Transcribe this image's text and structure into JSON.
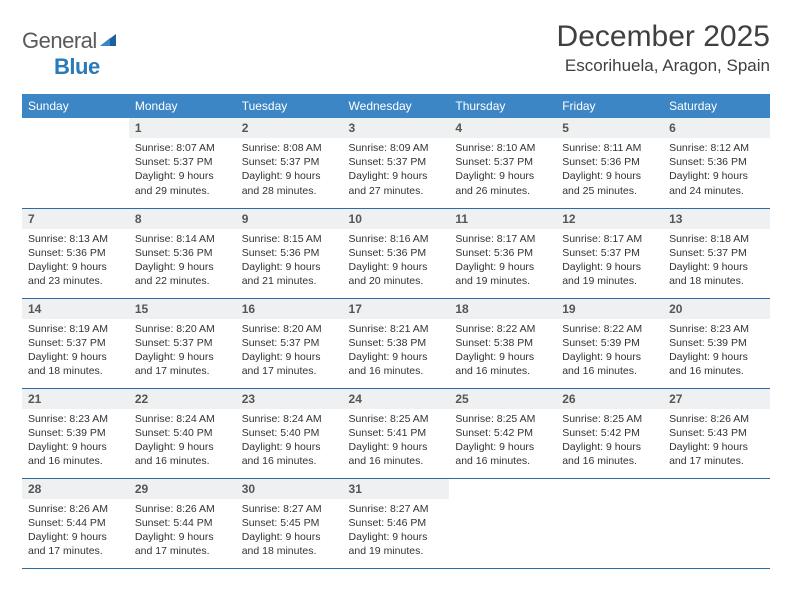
{
  "brand": {
    "text_a": "General",
    "text_b": "Blue"
  },
  "title": "December 2025",
  "location": "Escorihuela, Aragon, Spain",
  "colors": {
    "header_bg": "#3d86c6",
    "header_text": "#ffffff",
    "daynum_bg": "#eef0f1",
    "row_border": "#2a6ca8",
    "brand_gray": "#5a5a5a",
    "brand_blue": "#2a7ab9",
    "text": "#333333",
    "background": "#ffffff"
  },
  "typography": {
    "title_fontsize": 30,
    "location_fontsize": 17,
    "dayhead_fontsize": 12,
    "cell_fontsize": 10.5
  },
  "dayNames": [
    "Sunday",
    "Monday",
    "Tuesday",
    "Wednesday",
    "Thursday",
    "Friday",
    "Saturday"
  ],
  "weeks": [
    [
      {
        "empty": true
      },
      {
        "n": "1",
        "sr": "8:07 AM",
        "ss": "5:37 PM",
        "dl": "9 hours and 29 minutes."
      },
      {
        "n": "2",
        "sr": "8:08 AM",
        "ss": "5:37 PM",
        "dl": "9 hours and 28 minutes."
      },
      {
        "n": "3",
        "sr": "8:09 AM",
        "ss": "5:37 PM",
        "dl": "9 hours and 27 minutes."
      },
      {
        "n": "4",
        "sr": "8:10 AM",
        "ss": "5:37 PM",
        "dl": "9 hours and 26 minutes."
      },
      {
        "n": "5",
        "sr": "8:11 AM",
        "ss": "5:36 PM",
        "dl": "9 hours and 25 minutes."
      },
      {
        "n": "6",
        "sr": "8:12 AM",
        "ss": "5:36 PM",
        "dl": "9 hours and 24 minutes."
      }
    ],
    [
      {
        "n": "7",
        "sr": "8:13 AM",
        "ss": "5:36 PM",
        "dl": "9 hours and 23 minutes."
      },
      {
        "n": "8",
        "sr": "8:14 AM",
        "ss": "5:36 PM",
        "dl": "9 hours and 22 minutes."
      },
      {
        "n": "9",
        "sr": "8:15 AM",
        "ss": "5:36 PM",
        "dl": "9 hours and 21 minutes."
      },
      {
        "n": "10",
        "sr": "8:16 AM",
        "ss": "5:36 PM",
        "dl": "9 hours and 20 minutes."
      },
      {
        "n": "11",
        "sr": "8:17 AM",
        "ss": "5:36 PM",
        "dl": "9 hours and 19 minutes."
      },
      {
        "n": "12",
        "sr": "8:17 AM",
        "ss": "5:37 PM",
        "dl": "9 hours and 19 minutes."
      },
      {
        "n": "13",
        "sr": "8:18 AM",
        "ss": "5:37 PM",
        "dl": "9 hours and 18 minutes."
      }
    ],
    [
      {
        "n": "14",
        "sr": "8:19 AM",
        "ss": "5:37 PM",
        "dl": "9 hours and 18 minutes."
      },
      {
        "n": "15",
        "sr": "8:20 AM",
        "ss": "5:37 PM",
        "dl": "9 hours and 17 minutes."
      },
      {
        "n": "16",
        "sr": "8:20 AM",
        "ss": "5:37 PM",
        "dl": "9 hours and 17 minutes."
      },
      {
        "n": "17",
        "sr": "8:21 AM",
        "ss": "5:38 PM",
        "dl": "9 hours and 16 minutes."
      },
      {
        "n": "18",
        "sr": "8:22 AM",
        "ss": "5:38 PM",
        "dl": "9 hours and 16 minutes."
      },
      {
        "n": "19",
        "sr": "8:22 AM",
        "ss": "5:39 PM",
        "dl": "9 hours and 16 minutes."
      },
      {
        "n": "20",
        "sr": "8:23 AM",
        "ss": "5:39 PM",
        "dl": "9 hours and 16 minutes."
      }
    ],
    [
      {
        "n": "21",
        "sr": "8:23 AM",
        "ss": "5:39 PM",
        "dl": "9 hours and 16 minutes."
      },
      {
        "n": "22",
        "sr": "8:24 AM",
        "ss": "5:40 PM",
        "dl": "9 hours and 16 minutes."
      },
      {
        "n": "23",
        "sr": "8:24 AM",
        "ss": "5:40 PM",
        "dl": "9 hours and 16 minutes."
      },
      {
        "n": "24",
        "sr": "8:25 AM",
        "ss": "5:41 PM",
        "dl": "9 hours and 16 minutes."
      },
      {
        "n": "25",
        "sr": "8:25 AM",
        "ss": "5:42 PM",
        "dl": "9 hours and 16 minutes."
      },
      {
        "n": "26",
        "sr": "8:25 AM",
        "ss": "5:42 PM",
        "dl": "9 hours and 16 minutes."
      },
      {
        "n": "27",
        "sr": "8:26 AM",
        "ss": "5:43 PM",
        "dl": "9 hours and 17 minutes."
      }
    ],
    [
      {
        "n": "28",
        "sr": "8:26 AM",
        "ss": "5:44 PM",
        "dl": "9 hours and 17 minutes."
      },
      {
        "n": "29",
        "sr": "8:26 AM",
        "ss": "5:44 PM",
        "dl": "9 hours and 17 minutes."
      },
      {
        "n": "30",
        "sr": "8:27 AM",
        "ss": "5:45 PM",
        "dl": "9 hours and 18 minutes."
      },
      {
        "n": "31",
        "sr": "8:27 AM",
        "ss": "5:46 PM",
        "dl": "9 hours and 19 minutes."
      },
      {
        "empty": true
      },
      {
        "empty": true
      },
      {
        "empty": true
      }
    ]
  ],
  "labels": {
    "sunrise": "Sunrise:",
    "sunset": "Sunset:",
    "daylight": "Daylight:"
  }
}
